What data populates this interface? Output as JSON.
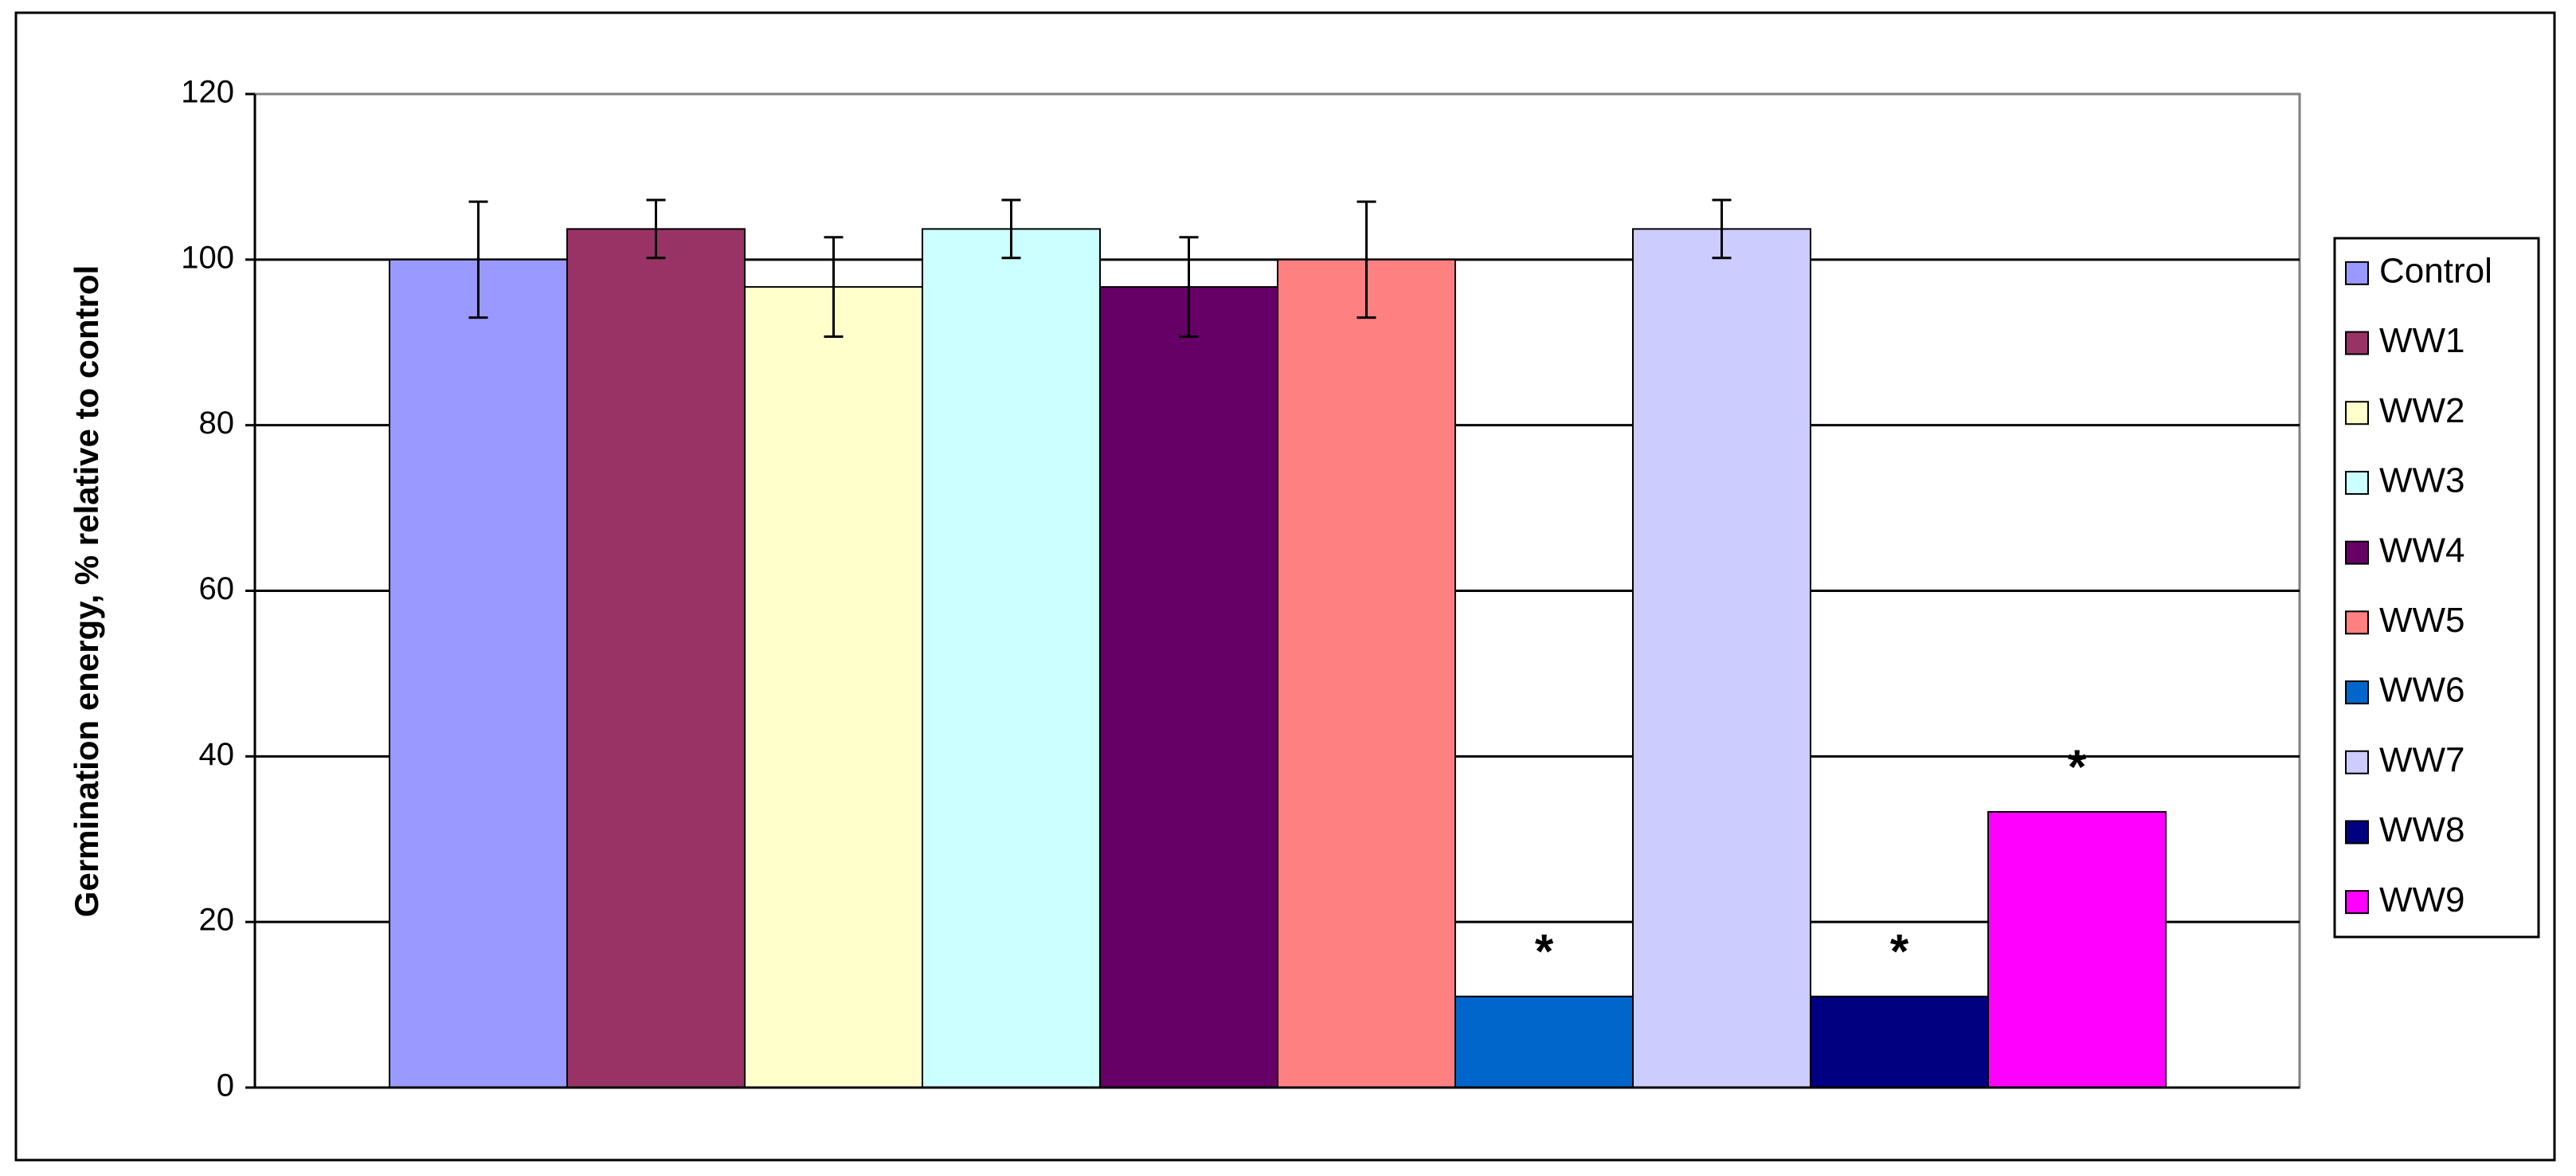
{
  "chart_data": {
    "type": "bar",
    "y_label": "Germination energy, % relative to control",
    "ylim": [
      0,
      120
    ],
    "yticks": [
      0,
      20,
      40,
      60,
      80,
      100,
      120
    ],
    "grid": true,
    "legend": "right",
    "series": [
      {
        "name": "Control",
        "color": "#9999ff",
        "values": [
          100
        ],
        "errors": [
          7
        ]
      },
      {
        "name": "WW1",
        "color": "#993366",
        "values": [
          103.7
        ],
        "errors": [
          3.5
        ]
      },
      {
        "name": "WW2",
        "color": "#ffffcc",
        "values": [
          96.7
        ],
        "errors": [
          6
        ]
      },
      {
        "name": "WW3",
        "color": "#ccffff",
        "values": [
          103.7
        ],
        "errors": [
          3.5
        ]
      },
      {
        "name": "WW4",
        "color": "#660066",
        "values": [
          96.7
        ],
        "errors": [
          6
        ]
      },
      {
        "name": "WW5",
        "color": "#ff8080",
        "values": [
          100
        ],
        "errors": [
          7
        ]
      },
      {
        "name": "WW6",
        "color": "#0066cc",
        "values": [
          11
        ],
        "annotation": "*"
      },
      {
        "name": "WW7",
        "color": "#ccccff",
        "values": [
          103.7
        ],
        "errors": [
          3.5
        ]
      },
      {
        "name": "WW8",
        "color": "#000080",
        "values": [
          11
        ],
        "annotation": "*"
      },
      {
        "name": "WW9",
        "color": "#ff00ff",
        "values": [
          33.3
        ],
        "annotation": "*"
      }
    ]
  }
}
